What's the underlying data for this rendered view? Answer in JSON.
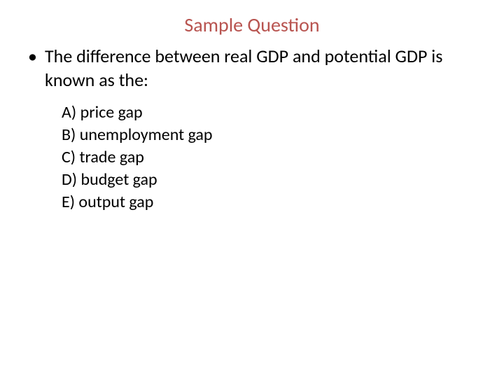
{
  "colors": {
    "title": "#b85450",
    "text": "#000000",
    "background": "#ffffff"
  },
  "typography": {
    "title_fontsize": 28,
    "question_fontsize": 26,
    "option_fontsize": 24,
    "font_family": "Calibri"
  },
  "title": "Sample Question",
  "question": "The difference between real GDP and potential GDP is known as the:",
  "options": [
    "A) price gap",
    "B) unemployment gap",
    "C) trade gap",
    "D) budget gap",
    "E) output gap"
  ]
}
